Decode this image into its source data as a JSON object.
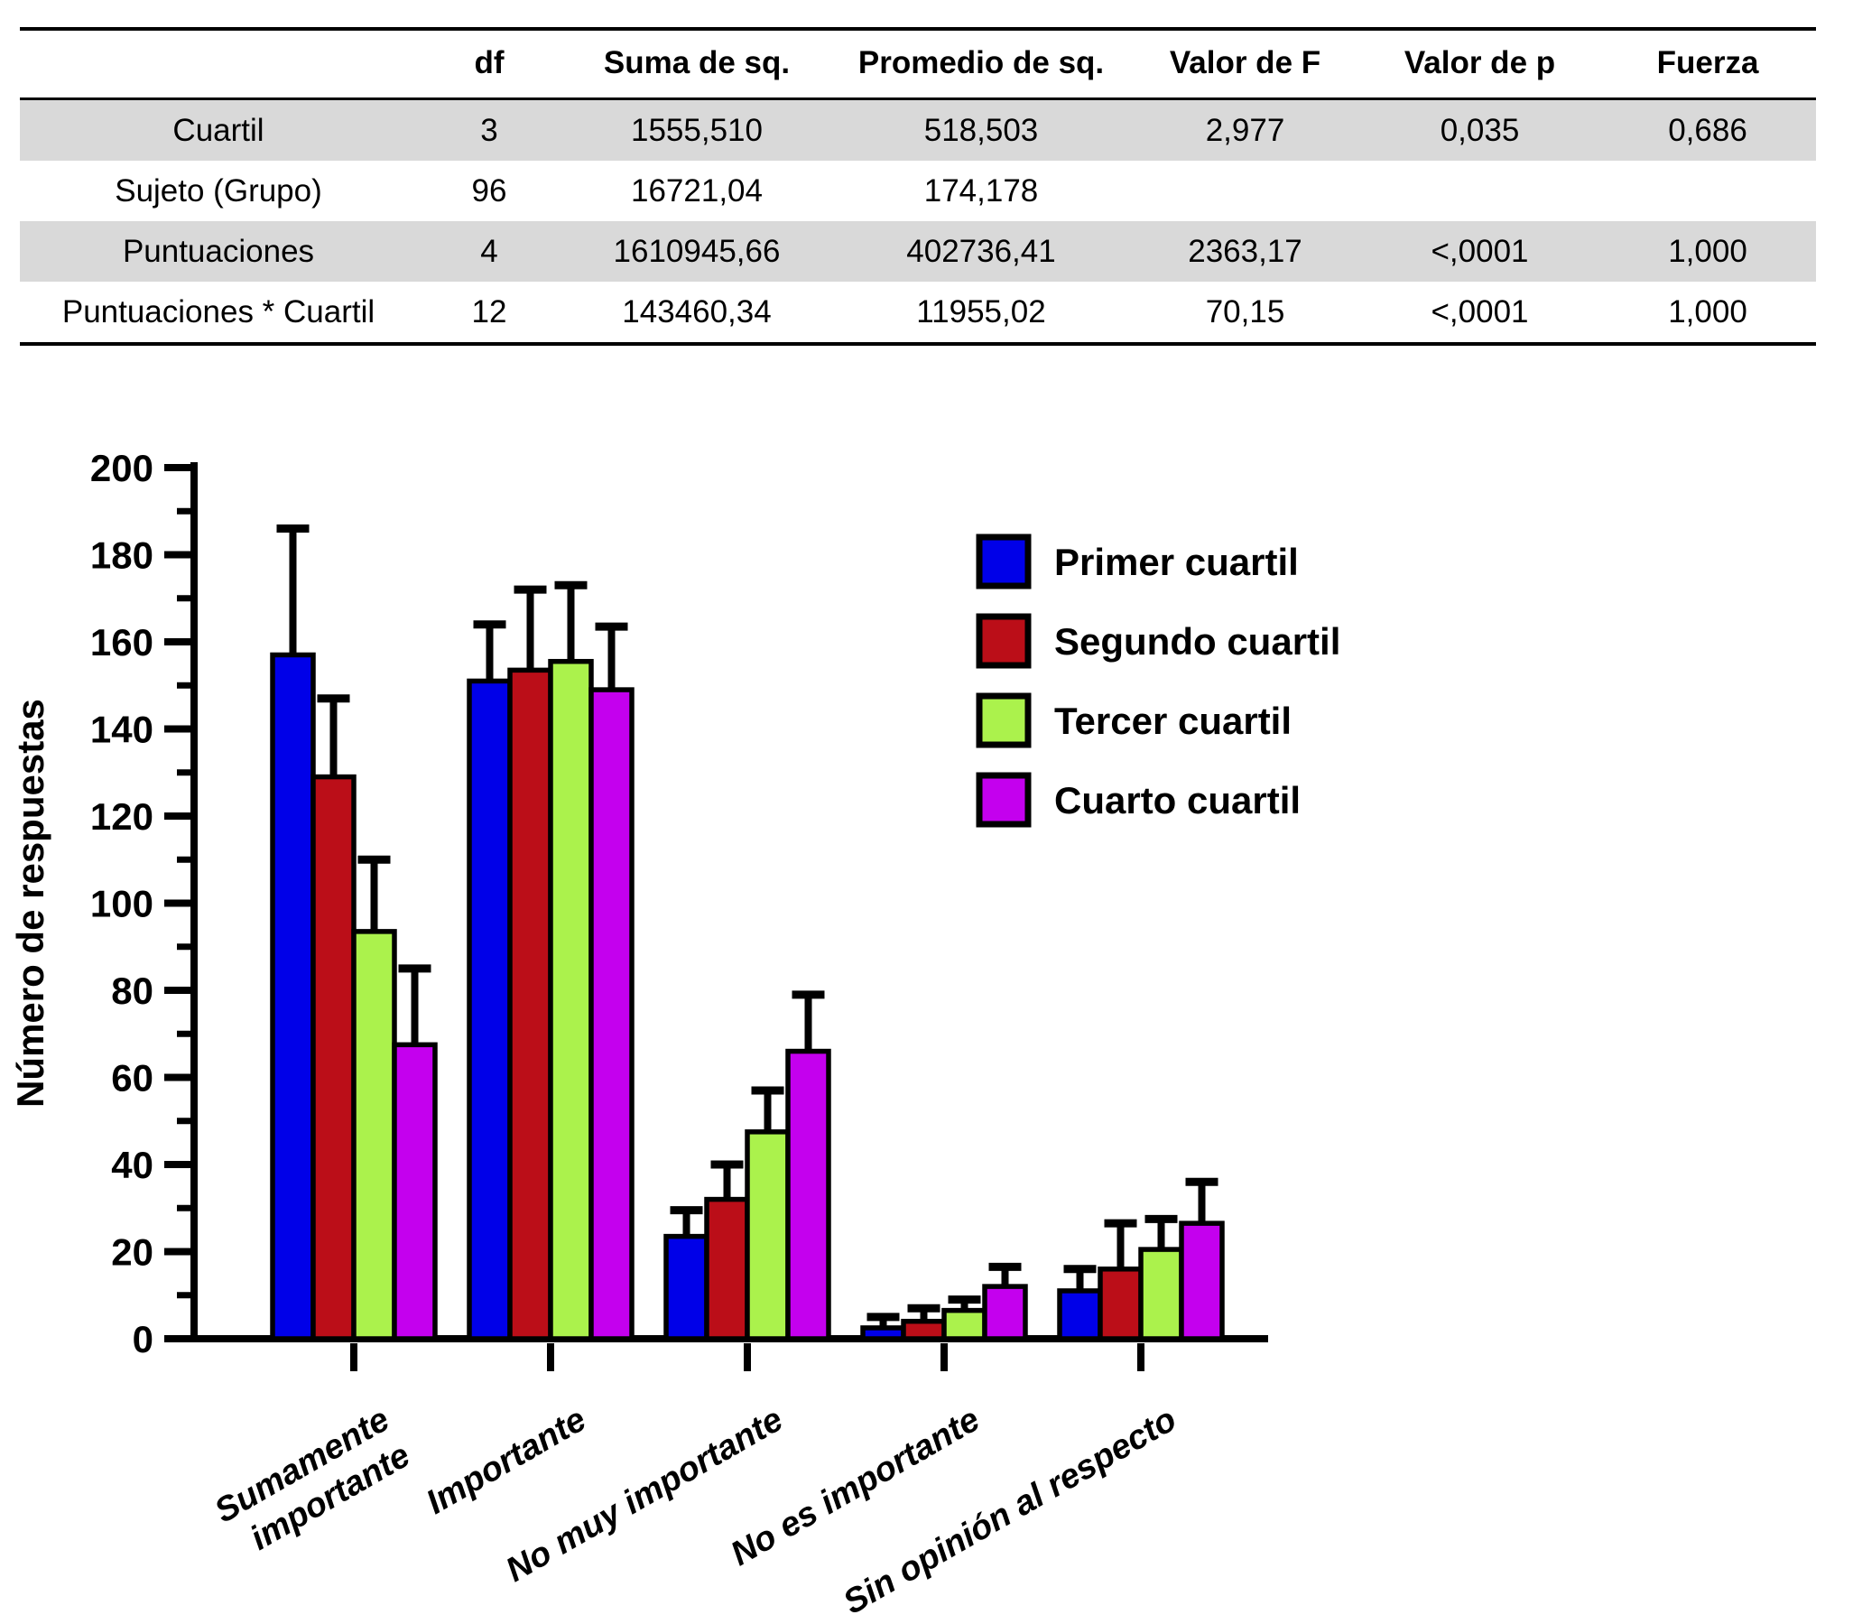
{
  "anova_table": {
    "columns": [
      "",
      "df",
      "Suma de sq.",
      "Promedio de sq.",
      "Valor de F",
      "Valor de p",
      "Fuerza"
    ],
    "rows": [
      [
        "Cuartil",
        "3",
        "1555,510",
        "518,503",
        "2,977",
        "0,035",
        "0,686"
      ],
      [
        "Sujeto (Grupo)",
        "96",
        "16721,04",
        "174,178",
        "",
        "",
        ""
      ],
      [
        "Puntuaciones",
        "4",
        "1610945,66",
        "402736,41",
        "2363,17",
        "<,0001",
        "1,000"
      ],
      [
        "Puntuaciones * Cuartil",
        "12",
        "143460,34",
        "11955,02",
        "70,15",
        "<,0001",
        "1,000"
      ]
    ],
    "shaded_rows": [
      0,
      2
    ],
    "shade_color": "#D9D9D9"
  },
  "chart_data": {
    "type": "bar",
    "title": "",
    "xlabel": "",
    "ylabel": "Número de respuestas",
    "ylim": [
      0,
      200
    ],
    "ytick_step": 20,
    "yminor_step": 10,
    "grid": false,
    "legend_position": "upper right",
    "error_bars": true,
    "categories": [
      {
        "label": "Sumamente importante",
        "lines": [
          "Sumamente",
          "importante"
        ]
      },
      {
        "label": "Importante",
        "lines": [
          "Importante"
        ]
      },
      {
        "label": "No muy importante",
        "lines": [
          "No muy importante"
        ]
      },
      {
        "label": "No es importante",
        "lines": [
          "No es importante"
        ]
      },
      {
        "label": "Sin opinión al respecto",
        "lines": [
          "Sin opinión al respecto"
        ]
      }
    ],
    "series": [
      {
        "name": "Primer cuartil",
        "color": "#0000E8",
        "values": [
          157,
          151,
          23.5,
          2.5,
          11
        ],
        "errors": [
          29,
          13,
          6,
          2.5,
          5
        ]
      },
      {
        "name": "Segundo cuartil",
        "color": "#BB0E18",
        "values": [
          129,
          153.5,
          32,
          4,
          16
        ],
        "errors": [
          18,
          18.5,
          8,
          3,
          10.5
        ]
      },
      {
        "name": "Tercer cuartil",
        "color": "#ABF24C",
        "values": [
          93.5,
          155.5,
          47.5,
          6.5,
          20.5
        ],
        "errors": [
          16.5,
          17.5,
          9.5,
          2.5,
          7
        ]
      },
      {
        "name": "Cuarto cuartil",
        "color": "#C400EE",
        "values": [
          67.5,
          149,
          66,
          12,
          26.5
        ],
        "errors": [
          17.5,
          14.5,
          13,
          4.5,
          9.5
        ]
      }
    ]
  }
}
